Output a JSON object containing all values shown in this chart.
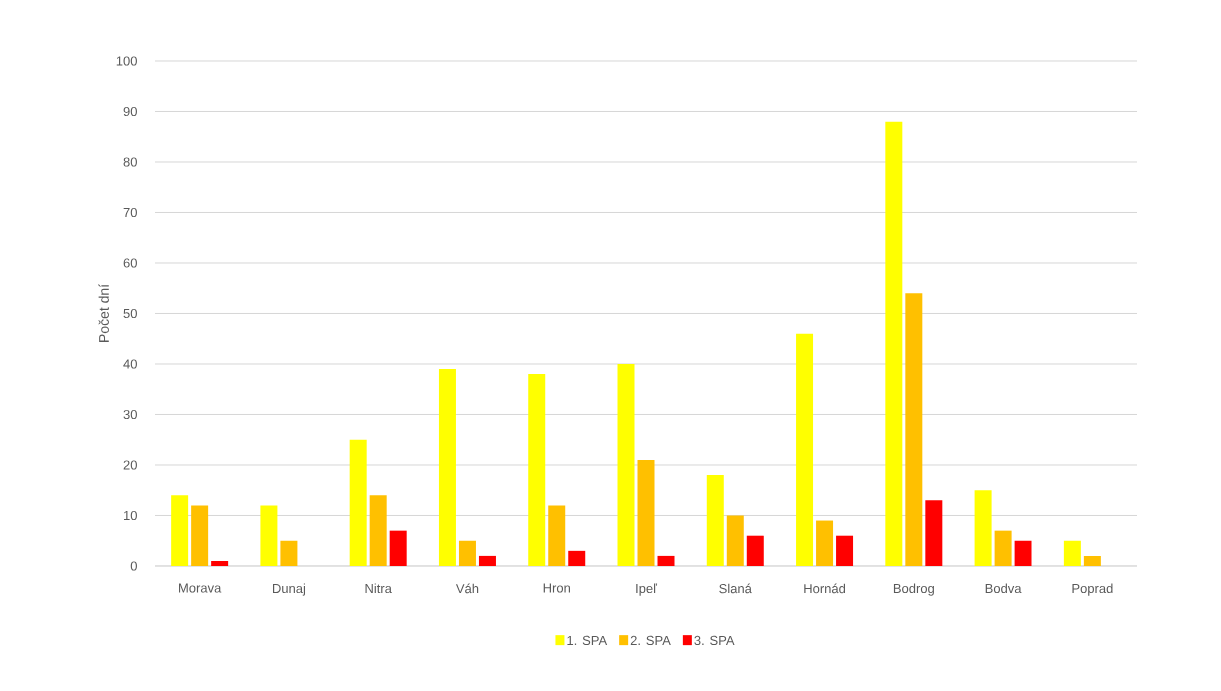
{
  "chart_data": {
    "type": "bar",
    "ylabel": "Počet dní",
    "categories": [
      "Morava",
      "Dunaj",
      "Nitra",
      "Váh",
      "Hron",
      "Ipeľ",
      "Slaná",
      "Hornád",
      "Bodrog",
      "Bodva",
      "Poprad"
    ],
    "series": [
      {
        "name": "1. SPA",
        "color": "#ffff00",
        "values": [
          14,
          12,
          25,
          39,
          38,
          40,
          18,
          46,
          88,
          15,
          5
        ]
      },
      {
        "name": "2. SPA",
        "color": "#ffc000",
        "values": [
          12,
          5,
          14,
          5,
          12,
          21,
          10,
          9,
          54,
          7,
          2
        ]
      },
      {
        "name": "3. SPA",
        "color": "#ff0000",
        "values": [
          1,
          null,
          7,
          2,
          3,
          2,
          6,
          6,
          13,
          5,
          null
        ]
      }
    ],
    "ylim": [
      0,
      100
    ],
    "yticks": [
      0,
      10,
      20,
      30,
      40,
      50,
      60,
      70,
      80,
      90,
      100
    ],
    "grid": "y",
    "legend": "bottom"
  }
}
